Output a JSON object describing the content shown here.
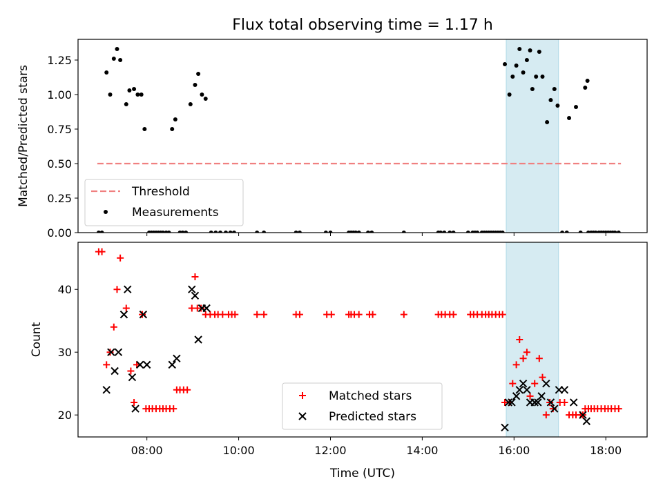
{
  "figure": {
    "title": "Flux total observing time = 1.17 h",
    "xlabel": "Time (UTC)"
  },
  "colors": {
    "threshold": "#f08080",
    "measurement": "#000000",
    "matched": "#ff0000",
    "predicted": "#000000",
    "highlight": "#add8e6"
  },
  "chart_data": [
    {
      "type": "scatter",
      "panel": "top",
      "ylabel": "Matched/Predicted stars",
      "xlim": [
        6.5,
        18.9
      ],
      "ylim": [
        0,
        1.4
      ],
      "yticks": [
        0,
        0.25,
        0.5,
        0.75,
        1.0,
        1.25
      ],
      "ytick_labels": [
        "0.00",
        "0.25",
        "0.50",
        "0.75",
        "1.00",
        "1.25",
        ""
      ],
      "xticks": [
        8,
        10,
        12,
        14,
        16,
        18
      ],
      "highlight_span": [
        15.83,
        16.97
      ],
      "legend": {
        "position": "lower-left",
        "entries": [
          "Threshold",
          "Measurements"
        ]
      },
      "series": [
        {
          "name": "Threshold",
          "kind": "dashed-line",
          "x": [
            6.92,
            18.33
          ],
          "y": [
            0.5,
            0.5
          ]
        },
        {
          "name": "Measurements",
          "kind": "dot",
          "points": [
            [
              6.95,
              0
            ],
            [
              7.02,
              0
            ],
            [
              7.12,
              1.16
            ],
            [
              7.2,
              1.0
            ],
            [
              7.28,
              1.26
            ],
            [
              7.35,
              1.33
            ],
            [
              7.42,
              1.25
            ],
            [
              7.55,
              0.93
            ],
            [
              7.62,
              1.03
            ],
            [
              7.72,
              1.04
            ],
            [
              7.8,
              1.0
            ],
            [
              7.88,
              1.0
            ],
            [
              7.95,
              0.75
            ],
            [
              8.05,
              0
            ],
            [
              8.1,
              0
            ],
            [
              8.15,
              0
            ],
            [
              8.2,
              0
            ],
            [
              8.25,
              0
            ],
            [
              8.3,
              0
            ],
            [
              8.35,
              0
            ],
            [
              8.42,
              0
            ],
            [
              8.48,
              0
            ],
            [
              8.55,
              0.75
            ],
            [
              8.62,
              0.82
            ],
            [
              8.72,
              0
            ],
            [
              8.78,
              0
            ],
            [
              8.85,
              0
            ],
            [
              8.95,
              0.93
            ],
            [
              9.05,
              1.07
            ],
            [
              9.12,
              1.15
            ],
            [
              9.2,
              1.0
            ],
            [
              9.28,
              0.97
            ],
            [
              9.4,
              0
            ],
            [
              9.5,
              0
            ],
            [
              9.6,
              0
            ],
            [
              9.72,
              0
            ],
            [
              9.82,
              0
            ],
            [
              9.9,
              0
            ],
            [
              10.4,
              0
            ],
            [
              10.55,
              0
            ],
            [
              11.25,
              0
            ],
            [
              11.33,
              0
            ],
            [
              11.9,
              0
            ],
            [
              12.0,
              0
            ],
            [
              12.4,
              0
            ],
            [
              12.45,
              0
            ],
            [
              12.5,
              0
            ],
            [
              12.55,
              0
            ],
            [
              12.62,
              0
            ],
            [
              12.82,
              0
            ],
            [
              12.9,
              0
            ],
            [
              13.6,
              0
            ],
            [
              14.35,
              0
            ],
            [
              14.4,
              0
            ],
            [
              14.48,
              0
            ],
            [
              14.6,
              0
            ],
            [
              14.68,
              0
            ],
            [
              15.0,
              0
            ],
            [
              15.1,
              0
            ],
            [
              15.15,
              0
            ],
            [
              15.2,
              0
            ],
            [
              15.3,
              0
            ],
            [
              15.35,
              0
            ],
            [
              15.4,
              0
            ],
            [
              15.45,
              0
            ],
            [
              15.5,
              0
            ],
            [
              15.55,
              0
            ],
            [
              15.6,
              0
            ],
            [
              15.65,
              0
            ],
            [
              15.7,
              0
            ],
            [
              15.75,
              0
            ],
            [
              15.8,
              1.22
            ],
            [
              15.9,
              1.0
            ],
            [
              15.97,
              1.13
            ],
            [
              16.05,
              1.21
            ],
            [
              16.12,
              1.33
            ],
            [
              16.2,
              1.16
            ],
            [
              16.28,
              1.25
            ],
            [
              16.35,
              1.32
            ],
            [
              16.4,
              1.04
            ],
            [
              16.48,
              1.13
            ],
            [
              16.55,
              1.31
            ],
            [
              16.62,
              1.13
            ],
            [
              16.72,
              0.8
            ],
            [
              16.8,
              0.96
            ],
            [
              16.88,
              1.04
            ],
            [
              16.95,
              0.92
            ],
            [
              17.05,
              0
            ],
            [
              17.15,
              0
            ],
            [
              17.2,
              0.83
            ],
            [
              17.35,
              0.91
            ],
            [
              17.45,
              0
            ],
            [
              17.55,
              1.05
            ],
            [
              17.6,
              1.1
            ],
            [
              17.62,
              0
            ],
            [
              17.68,
              0
            ],
            [
              17.73,
              0
            ],
            [
              17.78,
              0
            ],
            [
              17.85,
              0
            ],
            [
              17.9,
              0
            ],
            [
              17.95,
              0
            ],
            [
              18.0,
              0
            ],
            [
              18.05,
              0
            ],
            [
              18.1,
              0
            ],
            [
              18.15,
              0
            ],
            [
              18.2,
              0
            ],
            [
              18.28,
              0
            ]
          ]
        }
      ]
    },
    {
      "type": "scatter",
      "panel": "bottom",
      "ylabel": "Count",
      "xlim": [
        6.5,
        18.9
      ],
      "ylim": [
        16.5,
        47.5
      ],
      "yticks": [
        20,
        30,
        40
      ],
      "ytick_labels": [
        "20",
        "30",
        "40"
      ],
      "xticks": [
        8,
        10,
        12,
        14,
        16,
        18
      ],
      "xtick_labels": [
        "08:00",
        "10:00",
        "12:00",
        "14:00",
        "16:00",
        "18:00"
      ],
      "highlight_span": [
        15.83,
        16.97
      ],
      "legend": {
        "position": "lower-center",
        "entries": [
          "Matched stars",
          "Predicted stars"
        ]
      },
      "series": [
        {
          "name": "Matched stars",
          "kind": "plus",
          "points": [
            [
              6.95,
              46
            ],
            [
              7.02,
              46
            ],
            [
              7.12,
              28
            ],
            [
              7.2,
              30
            ],
            [
              7.28,
              34
            ],
            [
              7.35,
              40
            ],
            [
              7.42,
              45
            ],
            [
              7.55,
              37
            ],
            [
              7.65,
              27
            ],
            [
              7.72,
              22
            ],
            [
              7.78,
              28
            ],
            [
              7.9,
              36
            ],
            [
              7.98,
              21
            ],
            [
              8.05,
              21
            ],
            [
              8.12,
              21
            ],
            [
              8.2,
              21
            ],
            [
              8.28,
              21
            ],
            [
              8.35,
              21
            ],
            [
              8.42,
              21
            ],
            [
              8.5,
              21
            ],
            [
              8.58,
              21
            ],
            [
              8.65,
              24
            ],
            [
              8.72,
              24
            ],
            [
              8.8,
              24
            ],
            [
              8.88,
              24
            ],
            [
              8.98,
              37
            ],
            [
              9.05,
              42
            ],
            [
              9.1,
              37
            ],
            [
              9.18,
              37
            ],
            [
              9.28,
              36
            ],
            [
              9.38,
              36
            ],
            [
              9.48,
              36
            ],
            [
              9.55,
              36
            ],
            [
              9.65,
              36
            ],
            [
              9.78,
              36
            ],
            [
              9.85,
              36
            ],
            [
              9.92,
              36
            ],
            [
              10.4,
              36
            ],
            [
              10.55,
              36
            ],
            [
              11.25,
              36
            ],
            [
              11.33,
              36
            ],
            [
              11.92,
              36
            ],
            [
              12.02,
              36
            ],
            [
              12.4,
              36
            ],
            [
              12.45,
              36
            ],
            [
              12.52,
              36
            ],
            [
              12.62,
              36
            ],
            [
              12.85,
              36
            ],
            [
              12.92,
              36
            ],
            [
              13.6,
              36
            ],
            [
              14.35,
              36
            ],
            [
              14.42,
              36
            ],
            [
              14.5,
              36
            ],
            [
              14.6,
              36
            ],
            [
              14.68,
              36
            ],
            [
              15.05,
              36
            ],
            [
              15.12,
              36
            ],
            [
              15.2,
              36
            ],
            [
              15.3,
              36
            ],
            [
              15.38,
              36
            ],
            [
              15.45,
              36
            ],
            [
              15.52,
              36
            ],
            [
              15.6,
              36
            ],
            [
              15.68,
              36
            ],
            [
              15.75,
              36
            ],
            [
              15.8,
              22
            ],
            [
              15.9,
              22
            ],
            [
              15.97,
              25
            ],
            [
              16.05,
              28
            ],
            [
              16.12,
              32
            ],
            [
              16.2,
              29
            ],
            [
              16.28,
              30
            ],
            [
              16.35,
              23
            ],
            [
              16.45,
              25
            ],
            [
              16.55,
              29
            ],
            [
              16.62,
              26
            ],
            [
              16.7,
              20
            ],
            [
              16.78,
              22
            ],
            [
              16.85,
              21
            ],
            [
              17.0,
              22
            ],
            [
              17.1,
              22
            ],
            [
              17.2,
              20
            ],
            [
              17.28,
              20
            ],
            [
              17.35,
              20
            ],
            [
              17.45,
              20
            ],
            [
              17.5,
              20
            ],
            [
              17.55,
              21
            ],
            [
              17.62,
              21
            ],
            [
              17.68,
              21
            ],
            [
              17.75,
              21
            ],
            [
              17.82,
              21
            ],
            [
              17.9,
              21
            ],
            [
              17.98,
              21
            ],
            [
              18.05,
              21
            ],
            [
              18.12,
              21
            ],
            [
              18.2,
              21
            ],
            [
              18.28,
              21
            ]
          ]
        },
        {
          "name": "Predicted stars",
          "kind": "x",
          "points": [
            [
              7.12,
              24
            ],
            [
              7.22,
              30
            ],
            [
              7.3,
              27
            ],
            [
              7.38,
              30
            ],
            [
              7.5,
              36
            ],
            [
              7.58,
              40
            ],
            [
              7.68,
              26
            ],
            [
              7.75,
              21
            ],
            [
              7.85,
              28
            ],
            [
              7.92,
              36
            ],
            [
              8.0,
              28
            ],
            [
              8.55,
              28
            ],
            [
              8.65,
              29
            ],
            [
              8.98,
              40
            ],
            [
              9.05,
              39
            ],
            [
              9.12,
              32
            ],
            [
              9.2,
              37
            ],
            [
              9.3,
              37
            ],
            [
              15.8,
              18
            ],
            [
              15.88,
              22
            ],
            [
              15.95,
              22
            ],
            [
              16.05,
              23
            ],
            [
              16.12,
              24
            ],
            [
              16.2,
              25
            ],
            [
              16.28,
              24
            ],
            [
              16.35,
              22
            ],
            [
              16.45,
              22
            ],
            [
              16.52,
              22
            ],
            [
              16.6,
              23
            ],
            [
              16.7,
              25
            ],
            [
              16.8,
              22
            ],
            [
              16.88,
              21
            ],
            [
              16.98,
              24
            ],
            [
              17.1,
              24
            ],
            [
              17.3,
              22
            ],
            [
              17.5,
              20
            ],
            [
              17.58,
              19
            ]
          ]
        }
      ]
    }
  ]
}
